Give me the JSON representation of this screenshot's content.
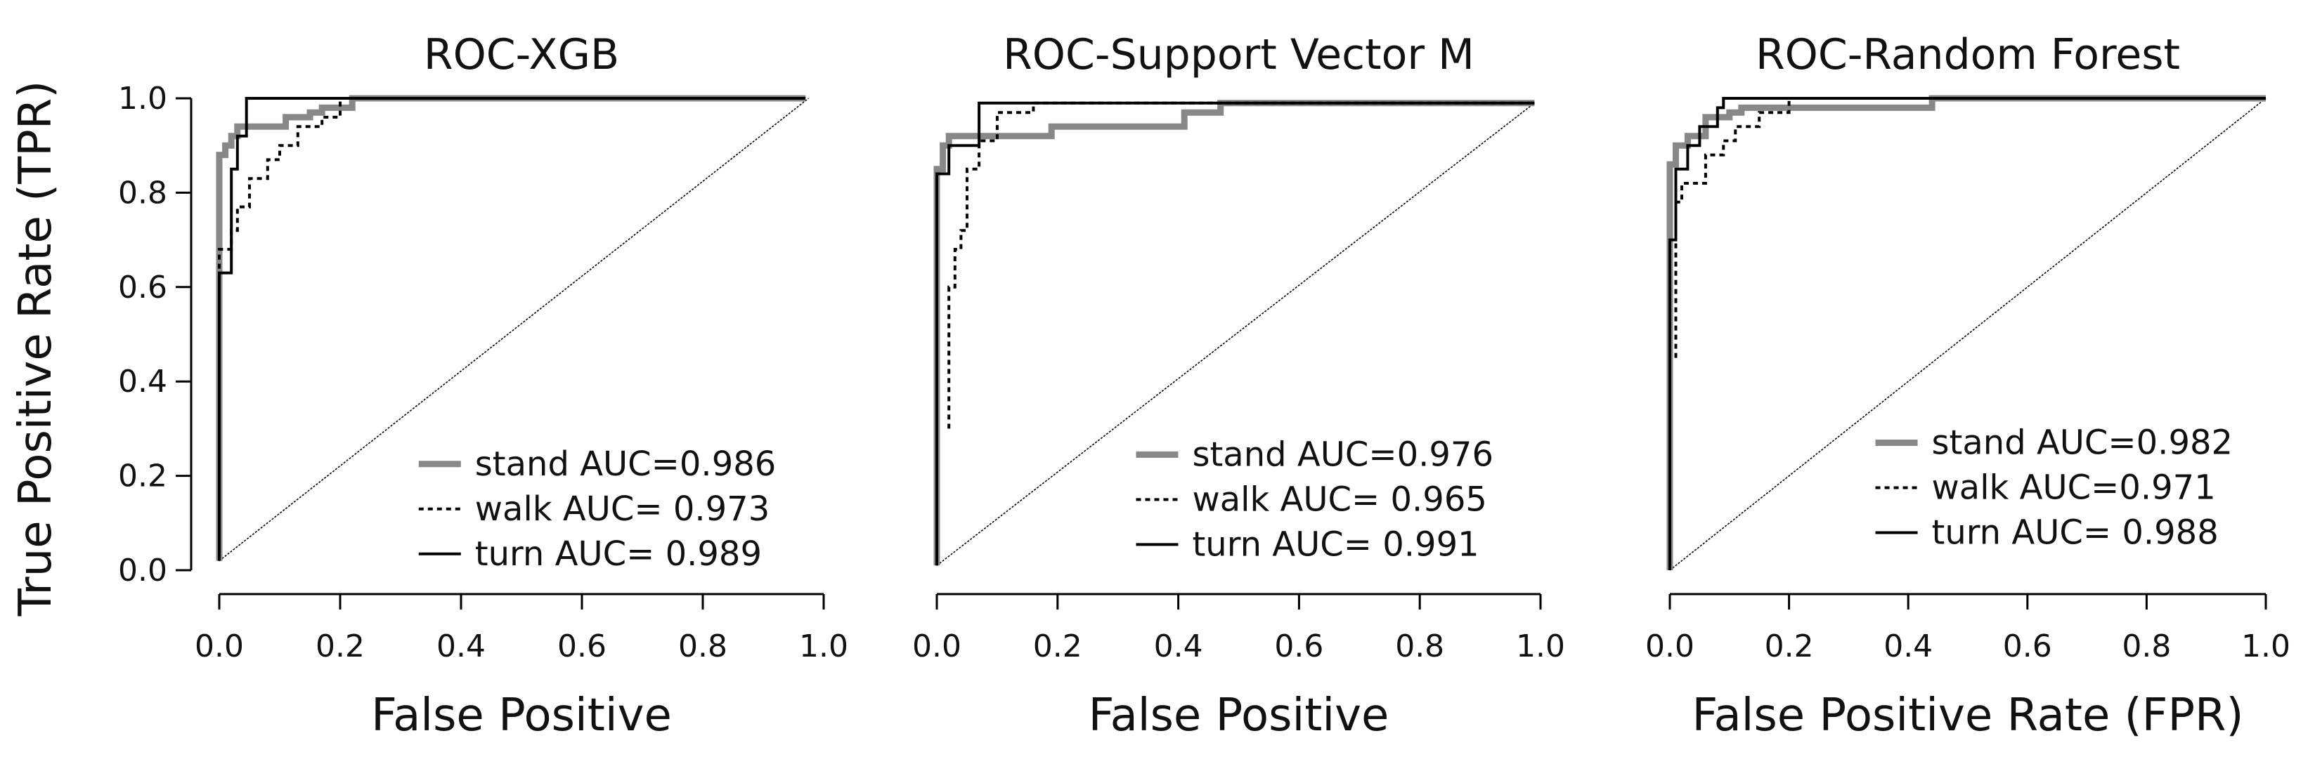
{
  "chart_data": [
    {
      "type": "line",
      "title": "ROC-XGB",
      "xlabel": "False Positive",
      "ylabel": "True Positive Rate (TPR)",
      "xlim": [
        0.0,
        1.0
      ],
      "ylim": [
        0.0,
        1.0
      ],
      "xticks": [
        "0.0",
        "0.2",
        "0.4",
        "0.6",
        "0.8",
        "1.0"
      ],
      "yticks": [
        "0.0",
        "0.2",
        "0.4",
        "0.6",
        "0.8",
        "1.0"
      ],
      "grid": false,
      "legend_position": "bottom-right",
      "diagonal": [
        [
          0.0,
          0.02
        ],
        [
          0.975,
          1.0
        ]
      ],
      "series": [
        {
          "name": "stand AUC=0.986",
          "style": "thick-gray",
          "x": [
            0.0,
            0.0,
            0.01,
            0.01,
            0.02,
            0.02,
            0.03,
            0.03,
            0.05,
            0.05,
            0.11,
            0.11,
            0.15,
            0.15,
            0.17,
            0.17,
            0.22,
            0.22,
            0.97
          ],
          "y": [
            0.02,
            0.88,
            0.88,
            0.9,
            0.9,
            0.92,
            0.92,
            0.94,
            0.94,
            0.94,
            0.94,
            0.96,
            0.96,
            0.97,
            0.97,
            0.98,
            0.98,
            1.0,
            1.0
          ]
        },
        {
          "name": "walk AUC= 0.973",
          "style": "dotted",
          "x": [
            0.0,
            0.0,
            0.02,
            0.02,
            0.03,
            0.03,
            0.05,
            0.05,
            0.08,
            0.08,
            0.1,
            0.1,
            0.13,
            0.13,
            0.17,
            0.17,
            0.2,
            0.2,
            0.97
          ],
          "y": [
            0.02,
            0.68,
            0.68,
            0.72,
            0.72,
            0.77,
            0.77,
            0.83,
            0.83,
            0.87,
            0.87,
            0.9,
            0.9,
            0.94,
            0.94,
            0.96,
            0.96,
            1.0,
            1.0
          ]
        },
        {
          "name": "turn AUC= 0.989",
          "style": "thin-black",
          "x": [
            0.0,
            0.0,
            0.02,
            0.02,
            0.03,
            0.03,
            0.045,
            0.045,
            0.97
          ],
          "y": [
            0.02,
            0.63,
            0.63,
            0.85,
            0.85,
            0.92,
            0.92,
            1.0,
            1.0
          ]
        }
      ]
    },
    {
      "type": "line",
      "title": "ROC-Support Vector M",
      "xlabel": "False Positive",
      "ylabel": "",
      "xlim": [
        0.0,
        1.0
      ],
      "ylim": [
        0.0,
        1.0
      ],
      "xticks": [
        "0.0",
        "0.2",
        "0.4",
        "0.6",
        "0.8",
        "1.0"
      ],
      "yticks": [],
      "grid": false,
      "legend_position": "bottom-right",
      "diagonal": [
        [
          0.0,
          0.01
        ],
        [
          0.99,
          0.99
        ]
      ],
      "series": [
        {
          "name": "stand AUC=0.976",
          "style": "thick-gray",
          "x": [
            0.0,
            0.0,
            0.01,
            0.01,
            0.02,
            0.02,
            0.05,
            0.05,
            0.19,
            0.19,
            0.41,
            0.41,
            0.47,
            0.47,
            0.99
          ],
          "y": [
            0.01,
            0.85,
            0.85,
            0.9,
            0.9,
            0.92,
            0.92,
            0.92,
            0.92,
            0.94,
            0.94,
            0.97,
            0.97,
            0.99,
            0.99
          ]
        },
        {
          "name": "walk AUC= 0.965",
          "style": "dotted",
          "x": [
            0.02,
            0.02,
            0.03,
            0.03,
            0.04,
            0.04,
            0.05,
            0.05,
            0.07,
            0.07,
            0.1,
            0.1,
            0.16,
            0.16,
            0.99
          ],
          "y": [
            0.3,
            0.6,
            0.6,
            0.68,
            0.68,
            0.72,
            0.72,
            0.85,
            0.85,
            0.91,
            0.91,
            0.97,
            0.97,
            0.99,
            0.99
          ]
        },
        {
          "name": "turn AUC= 0.991",
          "style": "thin-black",
          "x": [
            0.0,
            0.0,
            0.02,
            0.02,
            0.04,
            0.04,
            0.07,
            0.07,
            0.99
          ],
          "y": [
            0.01,
            0.84,
            0.84,
            0.9,
            0.9,
            0.9,
            0.9,
            0.99,
            0.99
          ]
        }
      ]
    },
    {
      "type": "line",
      "title": "ROC-Random Forest",
      "xlabel": "False Positive Rate (FPR)",
      "ylabel": "",
      "xlim": [
        0.0,
        1.0
      ],
      "ylim": [
        0.0,
        1.0
      ],
      "xticks": [
        "0.0",
        "0.2",
        "0.4",
        "0.6",
        "0.8",
        "1.0"
      ],
      "yticks": [],
      "grid": false,
      "legend_position": "bottom-right",
      "diagonal": [
        [
          0.0,
          0.0
        ],
        [
          1.0,
          1.0
        ]
      ],
      "series": [
        {
          "name": "stand AUC=0.982",
          "style": "thick-gray",
          "x": [
            0.0,
            0.0,
            0.01,
            0.01,
            0.03,
            0.03,
            0.06,
            0.06,
            0.1,
            0.1,
            0.12,
            0.12,
            0.44,
            0.44,
            1.0
          ],
          "y": [
            0.0,
            0.86,
            0.86,
            0.9,
            0.9,
            0.92,
            0.92,
            0.96,
            0.96,
            0.97,
            0.97,
            0.98,
            0.98,
            1.0,
            1.0
          ]
        },
        {
          "name": "walk AUC=0.971",
          "style": "dotted",
          "x": [
            0.01,
            0.01,
            0.02,
            0.02,
            0.06,
            0.06,
            0.09,
            0.09,
            0.11,
            0.11,
            0.15,
            0.15,
            0.2,
            0.2,
            1.0
          ],
          "y": [
            0.45,
            0.78,
            0.78,
            0.82,
            0.82,
            0.88,
            0.88,
            0.91,
            0.91,
            0.94,
            0.94,
            0.97,
            0.97,
            1.0,
            1.0
          ]
        },
        {
          "name": "turn AUC= 0.988",
          "style": "thin-black",
          "x": [
            0.0,
            0.0,
            0.01,
            0.01,
            0.03,
            0.03,
            0.05,
            0.05,
            0.08,
            0.08,
            0.09,
            0.09,
            1.0
          ],
          "y": [
            0.0,
            0.7,
            0.7,
            0.85,
            0.85,
            0.9,
            0.9,
            0.94,
            0.94,
            0.98,
            0.98,
            1.0,
            1.0
          ]
        }
      ]
    }
  ],
  "colors": {
    "thick-gray": "#888888",
    "dotted": "#000000",
    "thin-black": "#000000",
    "axis": "#000000"
  }
}
